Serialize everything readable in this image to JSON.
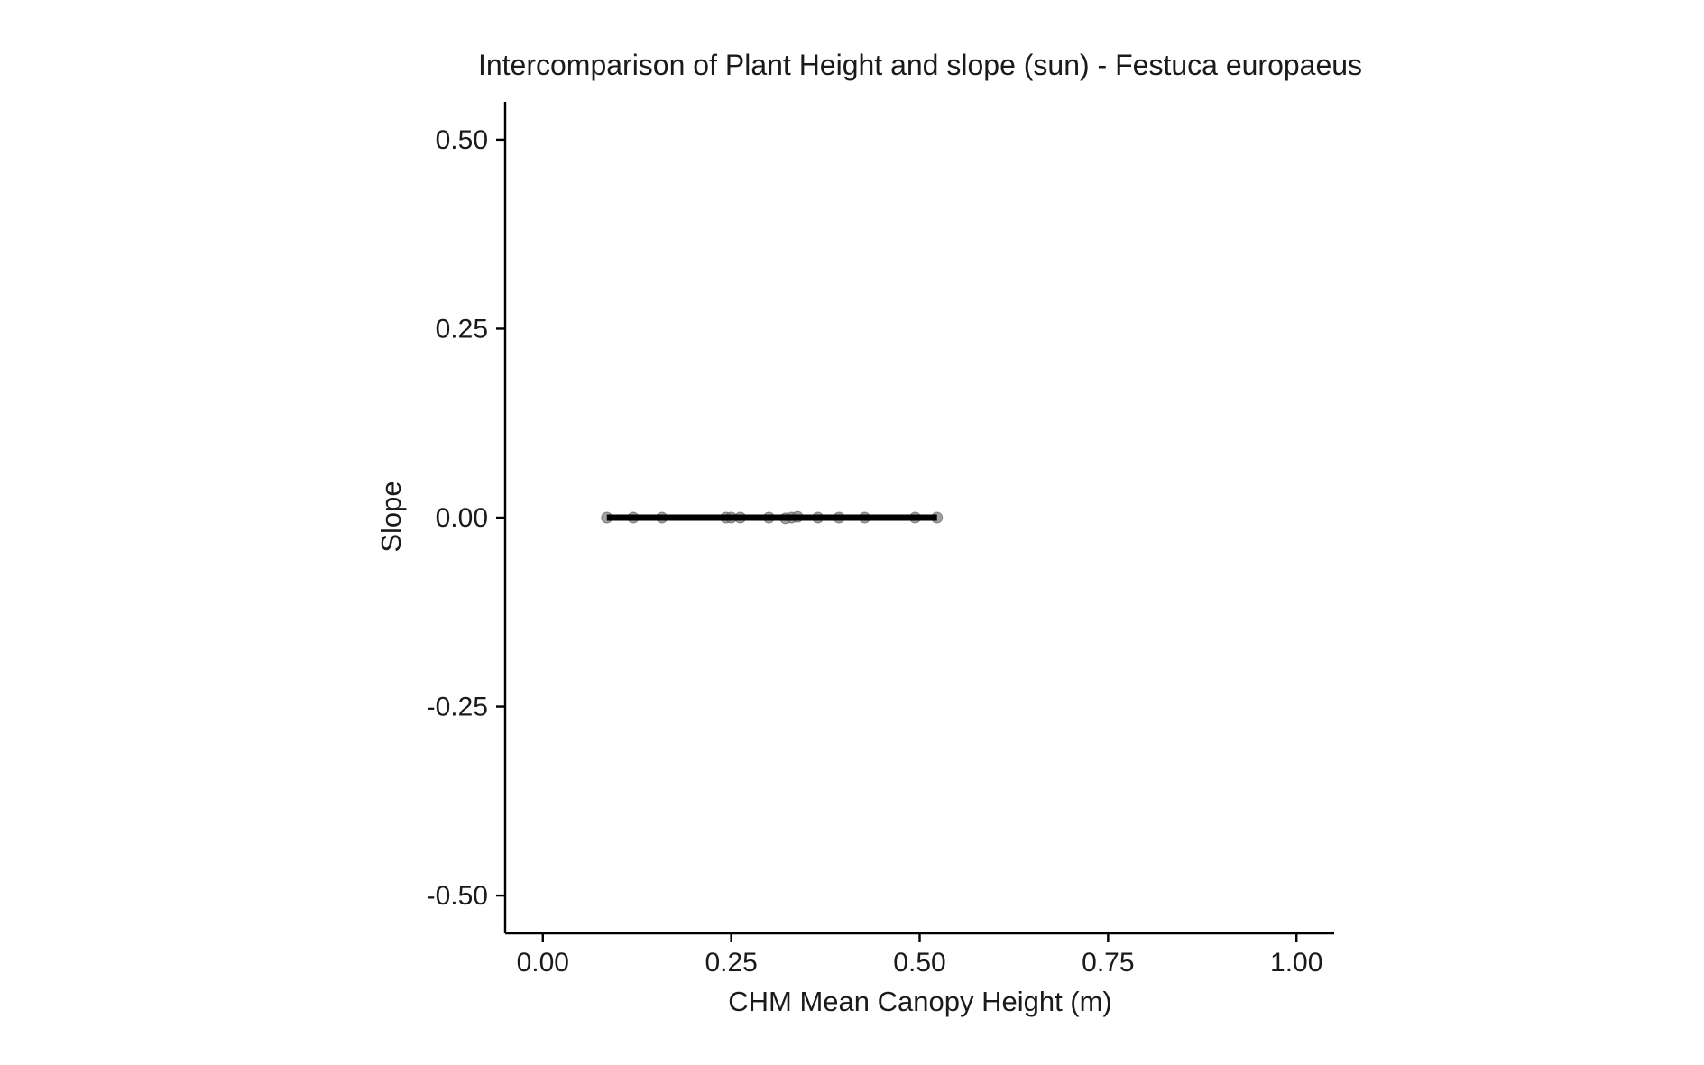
{
  "chart_data": {
    "type": "scatter",
    "title": "Intercomparison of Plant Height and slope (sun) - Festuca europaeus",
    "xlabel": "CHM Mean Canopy Height (m)",
    "ylabel": "Slope",
    "xlim": [
      -0.05,
      1.05
    ],
    "ylim": [
      -0.55,
      0.55
    ],
    "x_ticks": [
      0.0,
      0.25,
      0.5,
      0.75,
      1.0
    ],
    "x_tick_labels": [
      "0.00",
      "0.25",
      "0.50",
      "0.75",
      "1.00"
    ],
    "y_ticks": [
      0.5,
      0.25,
      0.0,
      -0.25,
      -0.5
    ],
    "y_tick_labels": [
      "0.50",
      "0.25",
      "0.00",
      "-0.25",
      "-0.50"
    ],
    "grid": false,
    "legend": "none",
    "points": {
      "x": [
        0.085,
        0.12,
        0.158,
        0.243,
        0.25,
        0.262,
        0.3,
        0.322,
        0.33,
        0.338,
        0.365,
        0.393,
        0.427,
        0.494,
        0.523
      ],
      "y": [
        0.0,
        0.0,
        0.0,
        0.0,
        0.0,
        0.0,
        0.0,
        -0.001,
        0.0,
        0.001,
        0.0,
        0.0,
        0.0,
        0.0,
        0.0
      ]
    },
    "fit_line": {
      "x": [
        0.085,
        0.523
      ],
      "y": [
        0.0,
        0.0
      ]
    },
    "colors": {
      "points": "#808080",
      "fit_line": "#000000",
      "axes": "#000000"
    }
  }
}
